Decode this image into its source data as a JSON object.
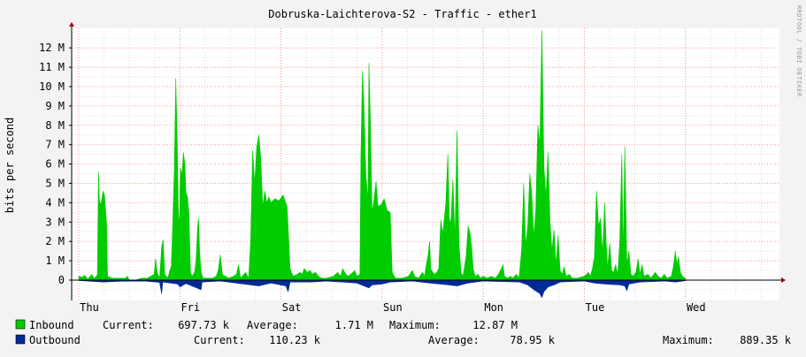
{
  "chart_data": {
    "type": "area",
    "title": "Dobruska-Laichterova-S2 - Traffic - ether1",
    "ylabel": "bits per second",
    "watermark": "RRDTOOL / TOBI OETIKER",
    "ylim": [
      -1,
      13
    ],
    "y_ticks": [
      "0",
      "1 M",
      "2 M",
      "3 M",
      "4 M",
      "5 M",
      "6 M",
      "7 M",
      "8 M",
      "9 M",
      "10 M",
      "11 M",
      "12 M"
    ],
    "x_ticks": [
      "Thu",
      "Fri",
      "Sat",
      "Sun",
      "Mon",
      "Tue",
      "Wed"
    ],
    "grid": true,
    "colors": {
      "inbound": "#00cc00",
      "outbound": "#002a97",
      "major_grid": "#ff9999",
      "minor_grid": "#e0e0e0",
      "plot_bg": "#ffffff",
      "page_bg": "#f3f3f3"
    },
    "x_day_span": [
      0,
      7
    ],
    "series": [
      {
        "name": "Inbound",
        "unit": "M",
        "points": [
          [
            0.0,
            0.2
          ],
          [
            0.035,
            0.15
          ],
          [
            0.06,
            0.25
          ],
          [
            0.09,
            0.05
          ],
          [
            0.13,
            0.3
          ],
          [
            0.15,
            0.08
          ],
          [
            0.175,
            0.2
          ],
          [
            0.185,
            0.3
          ],
          [
            0.195,
            5.6
          ],
          [
            0.205,
            4.1
          ],
          [
            0.22,
            3.9
          ],
          [
            0.24,
            4.6
          ],
          [
            0.255,
            4.4
          ],
          [
            0.275,
            3.0
          ],
          [
            0.285,
            0.2
          ],
          [
            0.33,
            0.1
          ],
          [
            0.4,
            0.1
          ],
          [
            0.46,
            0.1
          ],
          [
            0.48,
            0.2
          ],
          [
            0.5,
            0.0
          ],
          [
            0.56,
            0.0
          ],
          [
            0.62,
            0.1
          ],
          [
            0.68,
            0.1
          ],
          [
            0.745,
            0.3
          ],
          [
            0.76,
            1.1
          ],
          [
            0.775,
            0.4
          ],
          [
            0.8,
            0.1
          ],
          [
            0.82,
            1.7
          ],
          [
            0.835,
            2.1
          ],
          [
            0.85,
            0.3
          ],
          [
            0.88,
            0.1
          ],
          [
            0.9,
            0.5
          ],
          [
            0.915,
            0.7
          ],
          [
            0.93,
            3.0
          ],
          [
            0.945,
            5.7
          ],
          [
            0.96,
            10.4
          ],
          [
            0.975,
            7.0
          ],
          [
            0.985,
            3.4
          ],
          [
            0.995,
            2.8
          ],
          [
            1.005,
            5.8
          ],
          [
            1.02,
            5.4
          ],
          [
            1.035,
            6.6
          ],
          [
            1.05,
            6.0
          ],
          [
            1.06,
            4.5
          ],
          [
            1.075,
            4.3
          ],
          [
            1.09,
            3.4
          ],
          [
            1.105,
            0.4
          ],
          [
            1.12,
            0.2
          ],
          [
            1.145,
            0.4
          ],
          [
            1.16,
            1.0
          ],
          [
            1.175,
            2.7
          ],
          [
            1.185,
            3.2
          ],
          [
            1.195,
            1.5
          ],
          [
            1.21,
            0.4
          ],
          [
            1.23,
            0.1
          ],
          [
            1.28,
            0.1
          ],
          [
            1.32,
            0.1
          ],
          [
            1.36,
            0.2
          ],
          [
            1.38,
            0.5
          ],
          [
            1.4,
            1.3
          ],
          [
            1.42,
            0.3
          ],
          [
            1.45,
            0.2
          ],
          [
            1.48,
            0.1
          ],
          [
            1.53,
            0.2
          ],
          [
            1.56,
            0.3
          ],
          [
            1.58,
            0.8
          ],
          [
            1.6,
            0.1
          ],
          [
            1.65,
            0.4
          ],
          [
            1.68,
            0.1
          ],
          [
            1.7,
            2.0
          ],
          [
            1.72,
            6.7
          ],
          [
            1.74,
            5.0
          ],
          [
            1.76,
            6.9
          ],
          [
            1.78,
            7.5
          ],
          [
            1.8,
            6.3
          ],
          [
            1.82,
            3.8
          ],
          [
            1.84,
            4.6
          ],
          [
            1.86,
            4.0
          ],
          [
            1.88,
            4.3
          ],
          [
            1.9,
            4.0
          ],
          [
            1.94,
            4.2
          ],
          [
            1.98,
            4.1
          ],
          [
            2.02,
            4.4
          ],
          [
            2.06,
            3.8
          ],
          [
            2.09,
            0.6
          ],
          [
            2.12,
            0.2
          ],
          [
            2.16,
            0.3
          ],
          [
            2.19,
            0.4
          ],
          [
            2.21,
            0.3
          ],
          [
            2.23,
            0.6
          ],
          [
            2.26,
            0.4
          ],
          [
            2.29,
            0.5
          ],
          [
            2.31,
            0.3
          ],
          [
            2.34,
            0.4
          ],
          [
            2.37,
            0.2
          ],
          [
            2.4,
            0.1
          ],
          [
            2.45,
            0.1
          ],
          [
            2.52,
            0.2
          ],
          [
            2.56,
            0.4
          ],
          [
            2.59,
            0.2
          ],
          [
            2.61,
            0.6
          ],
          [
            2.63,
            0.4
          ],
          [
            2.66,
            0.2
          ],
          [
            2.69,
            0.3
          ],
          [
            2.73,
            0.5
          ],
          [
            2.75,
            0.2
          ],
          [
            2.78,
            0.3
          ],
          [
            2.79,
            6.3
          ],
          [
            2.805,
            10.8
          ],
          [
            2.82,
            9.1
          ],
          [
            2.84,
            5.4
          ],
          [
            2.86,
            4.1
          ],
          [
            2.87,
            11.2
          ],
          [
            2.885,
            8.0
          ],
          [
            2.9,
            3.5
          ],
          [
            2.92,
            4.2
          ],
          [
            2.94,
            5.1
          ],
          [
            2.96,
            3.8
          ],
          [
            2.99,
            3.9
          ],
          [
            3.02,
            4.2
          ],
          [
            3.05,
            3.6
          ],
          [
            3.08,
            3.5
          ],
          [
            3.1,
            0.4
          ],
          [
            3.13,
            0.1
          ],
          [
            3.2,
            0.1
          ],
          [
            3.26,
            0.2
          ],
          [
            3.3,
            0.5
          ],
          [
            3.32,
            0.2
          ],
          [
            3.36,
            0.1
          ],
          [
            3.4,
            0.4
          ],
          [
            3.42,
            0.2
          ],
          [
            3.44,
            0.9
          ],
          [
            3.455,
            1.3
          ],
          [
            3.47,
            2.0
          ],
          [
            3.48,
            0.6
          ],
          [
            3.5,
            0.4
          ],
          [
            3.52,
            0.3
          ],
          [
            3.54,
            0.4
          ],
          [
            3.56,
            0.6
          ],
          [
            3.58,
            3.1
          ],
          [
            3.6,
            2.4
          ],
          [
            3.63,
            4.0
          ],
          [
            3.65,
            6.5
          ],
          [
            3.665,
            3.2
          ],
          [
            3.68,
            2.9
          ],
          [
            3.7,
            5.2
          ],
          [
            3.72,
            2.1
          ],
          [
            3.74,
            7.7
          ],
          [
            3.76,
            1.8
          ],
          [
            3.78,
            0.4
          ],
          [
            3.8,
            0.2
          ],
          [
            3.83,
            1.2
          ],
          [
            3.85,
            2.8
          ],
          [
            3.87,
            2.4
          ],
          [
            3.885,
            1.7
          ],
          [
            3.9,
            0.6
          ],
          [
            3.92,
            0.2
          ],
          [
            3.95,
            0.3
          ],
          [
            3.97,
            0.1
          ],
          [
            4.0,
            0.2
          ],
          [
            4.04,
            0.1
          ],
          [
            4.08,
            0.2
          ],
          [
            4.12,
            0.1
          ],
          [
            4.15,
            0.3
          ],
          [
            4.18,
            0.6
          ],
          [
            4.195,
            0.8
          ],
          [
            4.21,
            0.2
          ],
          [
            4.24,
            0.1
          ],
          [
            4.27,
            0.2
          ],
          [
            4.29,
            0.1
          ],
          [
            4.31,
            0.2
          ],
          [
            4.33,
            0.3
          ],
          [
            4.35,
            0.1
          ],
          [
            4.36,
            0.4
          ],
          [
            4.38,
            1.6
          ],
          [
            4.4,
            5.0
          ],
          [
            4.42,
            1.8
          ],
          [
            4.44,
            2.8
          ],
          [
            4.46,
            5.5
          ],
          [
            4.48,
            4.4
          ],
          [
            4.5,
            2.2
          ],
          [
            4.52,
            3.7
          ],
          [
            4.54,
            8.0
          ],
          [
            4.56,
            7.0
          ],
          [
            4.58,
            12.9
          ],
          [
            4.6,
            5.8
          ],
          [
            4.62,
            4.3
          ],
          [
            4.64,
            6.6
          ],
          [
            4.66,
            3.1
          ],
          [
            4.68,
            1.5
          ],
          [
            4.7,
            2.6
          ],
          [
            4.72,
            0.8
          ],
          [
            4.74,
            2.3
          ],
          [
            4.76,
            0.5
          ],
          [
            4.78,
            0.3
          ],
          [
            4.8,
            0.7
          ],
          [
            4.82,
            0.2
          ],
          [
            4.85,
            0.3
          ],
          [
            4.88,
            0.1
          ],
          [
            4.93,
            0.1
          ],
          [
            5.0,
            0.2
          ],
          [
            5.04,
            0.4
          ],
          [
            5.06,
            0.2
          ],
          [
            5.08,
            0.6
          ],
          [
            5.1,
            1.2
          ],
          [
            5.12,
            4.6
          ],
          [
            5.14,
            2.8
          ],
          [
            5.16,
            3.2
          ],
          [
            5.18,
            1.3
          ],
          [
            5.2,
            4.0
          ],
          [
            5.215,
            2.0
          ],
          [
            5.23,
            0.6
          ],
          [
            5.25,
            1.9
          ],
          [
            5.27,
            0.5
          ],
          [
            5.29,
            0.4
          ],
          [
            5.31,
            0.8
          ],
          [
            5.33,
            0.3
          ],
          [
            5.35,
            2.0
          ],
          [
            5.37,
            6.5
          ],
          [
            5.385,
            1.2
          ],
          [
            5.4,
            6.9
          ],
          [
            5.42,
            0.8
          ],
          [
            5.44,
            1.5
          ],
          [
            5.46,
            0.3
          ],
          [
            5.48,
            0.2
          ],
          [
            5.51,
            0.4
          ],
          [
            5.53,
            1.1
          ],
          [
            5.55,
            0.3
          ],
          [
            5.57,
            0.8
          ],
          [
            5.59,
            0.2
          ],
          [
            5.63,
            0.3
          ],
          [
            5.66,
            0.1
          ],
          [
            5.7,
            0.4
          ],
          [
            5.73,
            0.2
          ],
          [
            5.76,
            0.1
          ],
          [
            5.79,
            0.3
          ],
          [
            5.82,
            0.1
          ],
          [
            5.86,
            0.2
          ],
          [
            5.88,
            0.7
          ],
          [
            5.9,
            1.5
          ],
          [
            5.915,
            0.8
          ],
          [
            5.93,
            1.2
          ],
          [
            5.95,
            0.4
          ],
          [
            5.97,
            0.2
          ],
          [
            5.99,
            0.1
          ],
          [
            6.0,
            0.1
          ]
        ]
      },
      {
        "name": "Outbound",
        "unit": "M",
        "points": [
          [
            0.0,
            -0.02
          ],
          [
            0.24,
            -0.1
          ],
          [
            0.42,
            -0.06
          ],
          [
            0.65,
            -0.05
          ],
          [
            0.8,
            -0.12
          ],
          [
            0.82,
            -0.7
          ],
          [
            0.83,
            -0.1
          ],
          [
            0.98,
            -0.2
          ],
          [
            1.0,
            -0.35
          ],
          [
            1.06,
            -0.18
          ],
          [
            1.21,
            -0.5
          ],
          [
            1.22,
            -0.1
          ],
          [
            1.4,
            -0.05
          ],
          [
            1.78,
            -0.3
          ],
          [
            1.9,
            -0.15
          ],
          [
            2.05,
            -0.3
          ],
          [
            2.07,
            -0.6
          ],
          [
            2.09,
            -0.1
          ],
          [
            2.3,
            -0.1
          ],
          [
            2.45,
            -0.05
          ],
          [
            2.75,
            -0.15
          ],
          [
            2.87,
            -0.4
          ],
          [
            2.9,
            -0.25
          ],
          [
            3.0,
            -0.2
          ],
          [
            3.08,
            -0.1
          ],
          [
            3.3,
            -0.05
          ],
          [
            3.47,
            -0.15
          ],
          [
            3.66,
            -0.25
          ],
          [
            3.74,
            -0.3
          ],
          [
            3.85,
            -0.15
          ],
          [
            4.0,
            -0.05
          ],
          [
            4.36,
            -0.1
          ],
          [
            4.44,
            -0.25
          ],
          [
            4.5,
            -0.5
          ],
          [
            4.56,
            -0.7
          ],
          [
            4.58,
            -0.9
          ],
          [
            4.6,
            -0.6
          ],
          [
            4.64,
            -0.35
          ],
          [
            4.7,
            -0.25
          ],
          [
            4.76,
            -0.1
          ],
          [
            5.0,
            -0.05
          ],
          [
            5.1,
            -0.15
          ],
          [
            5.2,
            -0.2
          ],
          [
            5.35,
            -0.25
          ],
          [
            5.4,
            -0.3
          ],
          [
            5.42,
            -0.55
          ],
          [
            5.44,
            -0.2
          ],
          [
            5.55,
            -0.1
          ],
          [
            5.8,
            -0.05
          ],
          [
            5.9,
            -0.1
          ],
          [
            6.0,
            -0.03
          ]
        ]
      }
    ]
  },
  "legend": {
    "inbound": {
      "name": "Inbound",
      "current_label": "Current:",
      "current": "697.73 k",
      "average_label": "Average:",
      "average": "1.71 M",
      "maximum_label": "Maximum:",
      "maximum": "12.87 M"
    },
    "outbound": {
      "name": "Outbound",
      "current_label": "Current:",
      "current": "110.23 k",
      "average_label": "Average:",
      "average": "78.95 k",
      "maximum_label": "Maximum:",
      "maximum": "889.35 k"
    }
  }
}
